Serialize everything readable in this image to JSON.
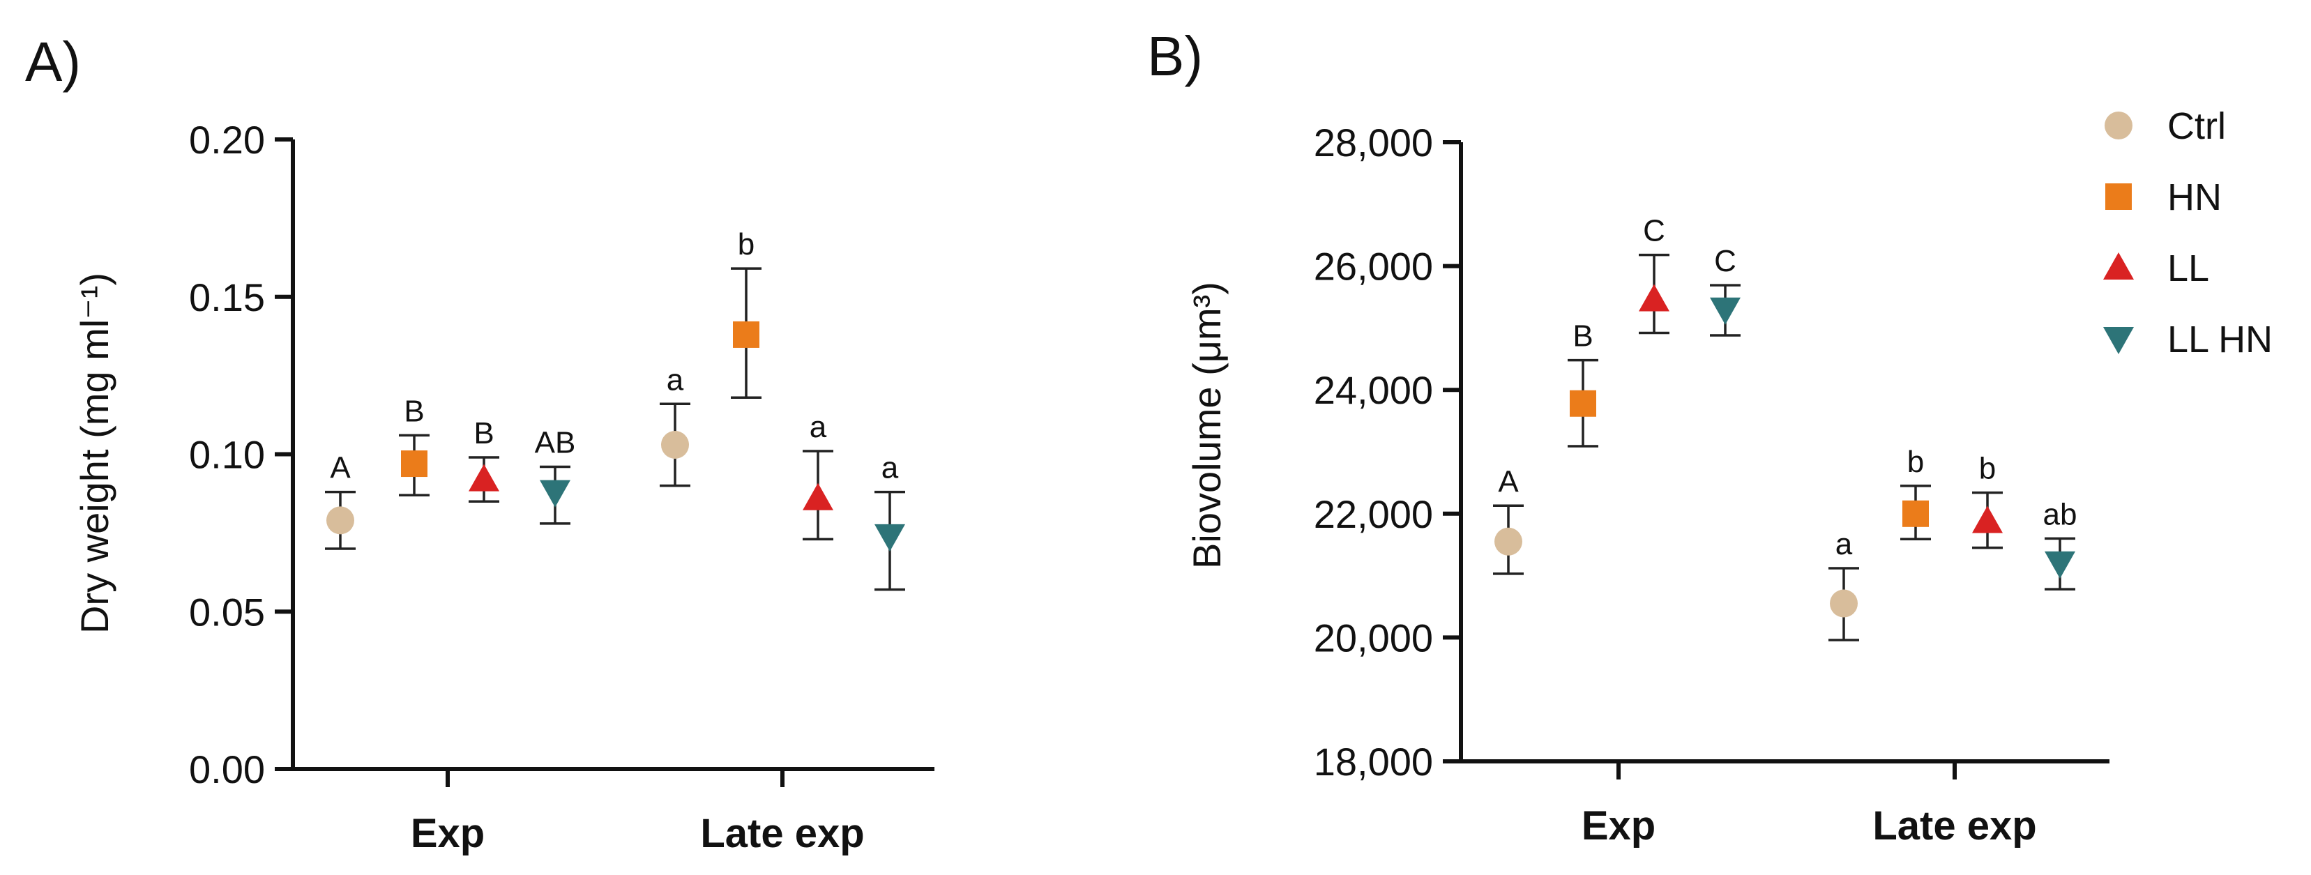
{
  "figure": {
    "legend": [
      {
        "label": "Ctrl",
        "marker": "circle",
        "color": "#D8BD9B"
      },
      {
        "label": "HN",
        "marker": "square",
        "color": "#EB7C1A"
      },
      {
        "label": "LL",
        "marker": "triangle-up",
        "color": "#D92222"
      },
      {
        "label": "LL HN",
        "marker": "triangle-down",
        "color": "#2D7478"
      }
    ]
  },
  "chart_data": [
    {
      "type": "scatter",
      "panel_label": "A)",
      "title": "",
      "xlabel": "",
      "ylabel": "Dry weight (mg ml⁻¹)",
      "categories": [
        "Exp",
        "Late exp"
      ],
      "ylim": [
        0.0,
        0.2
      ],
      "yticks": [
        0.0,
        0.05,
        0.1,
        0.15,
        0.2
      ],
      "ytick_labels": [
        "0.00",
        "0.05",
        "0.10",
        "0.15",
        "0.20"
      ],
      "grid": false,
      "series": [
        {
          "name": "Ctrl",
          "values": [
            0.079,
            0.103
          ],
          "err_low": [
            0.07,
            0.09
          ],
          "err_high": [
            0.088,
            0.116
          ],
          "letters": [
            "A",
            "a"
          ]
        },
        {
          "name": "HN",
          "values": [
            0.097,
            0.138
          ],
          "err_low": [
            0.087,
            0.118
          ],
          "err_high": [
            0.106,
            0.159
          ],
          "letters": [
            "B",
            "b"
          ]
        },
        {
          "name": "LL",
          "values": [
            0.092,
            0.086
          ],
          "err_low": [
            0.085,
            0.073
          ],
          "err_high": [
            0.099,
            0.101
          ],
          "letters": [
            "B",
            "a"
          ]
        },
        {
          "name": "LL HN",
          "values": [
            0.088,
            0.074
          ],
          "err_low": [
            0.078,
            0.057
          ],
          "err_high": [
            0.096,
            0.088
          ],
          "letters": [
            "AB",
            "a"
          ]
        }
      ]
    },
    {
      "type": "scatter",
      "panel_label": "B)",
      "title": "",
      "xlabel": "",
      "ylabel": "Biovolume (μm³)",
      "categories": [
        "Exp",
        "Late exp"
      ],
      "ylim": [
        18000,
        28000
      ],
      "yticks": [
        18000,
        20000,
        22000,
        24000,
        26000,
        28000
      ],
      "ytick_labels": [
        "18,000",
        "20,000",
        "22,000",
        "24,000",
        "26,000",
        "28,000"
      ],
      "grid": false,
      "legend_position": "top-right",
      "series": [
        {
          "name": "Ctrl",
          "values": [
            21550,
            20550
          ],
          "err_low": [
            21030,
            19960
          ],
          "err_high": [
            22130,
            21120
          ],
          "letters": [
            "A",
            "a"
          ]
        },
        {
          "name": "HN",
          "values": [
            23780,
            22000
          ],
          "err_low": [
            23090,
            21590
          ],
          "err_high": [
            24480,
            22450
          ],
          "letters": [
            "B",
            "b"
          ]
        },
        {
          "name": "LL",
          "values": [
            25460,
            21880
          ],
          "err_low": [
            24920,
            21450
          ],
          "err_high": [
            26180,
            22340
          ],
          "letters": [
            "C",
            "b"
          ]
        },
        {
          "name": "LL HN",
          "values": [
            25300,
            21200
          ],
          "err_low": [
            24880,
            20780
          ],
          "err_high": [
            25690,
            21600
          ],
          "letters": [
            "C",
            "ab"
          ]
        }
      ]
    }
  ]
}
